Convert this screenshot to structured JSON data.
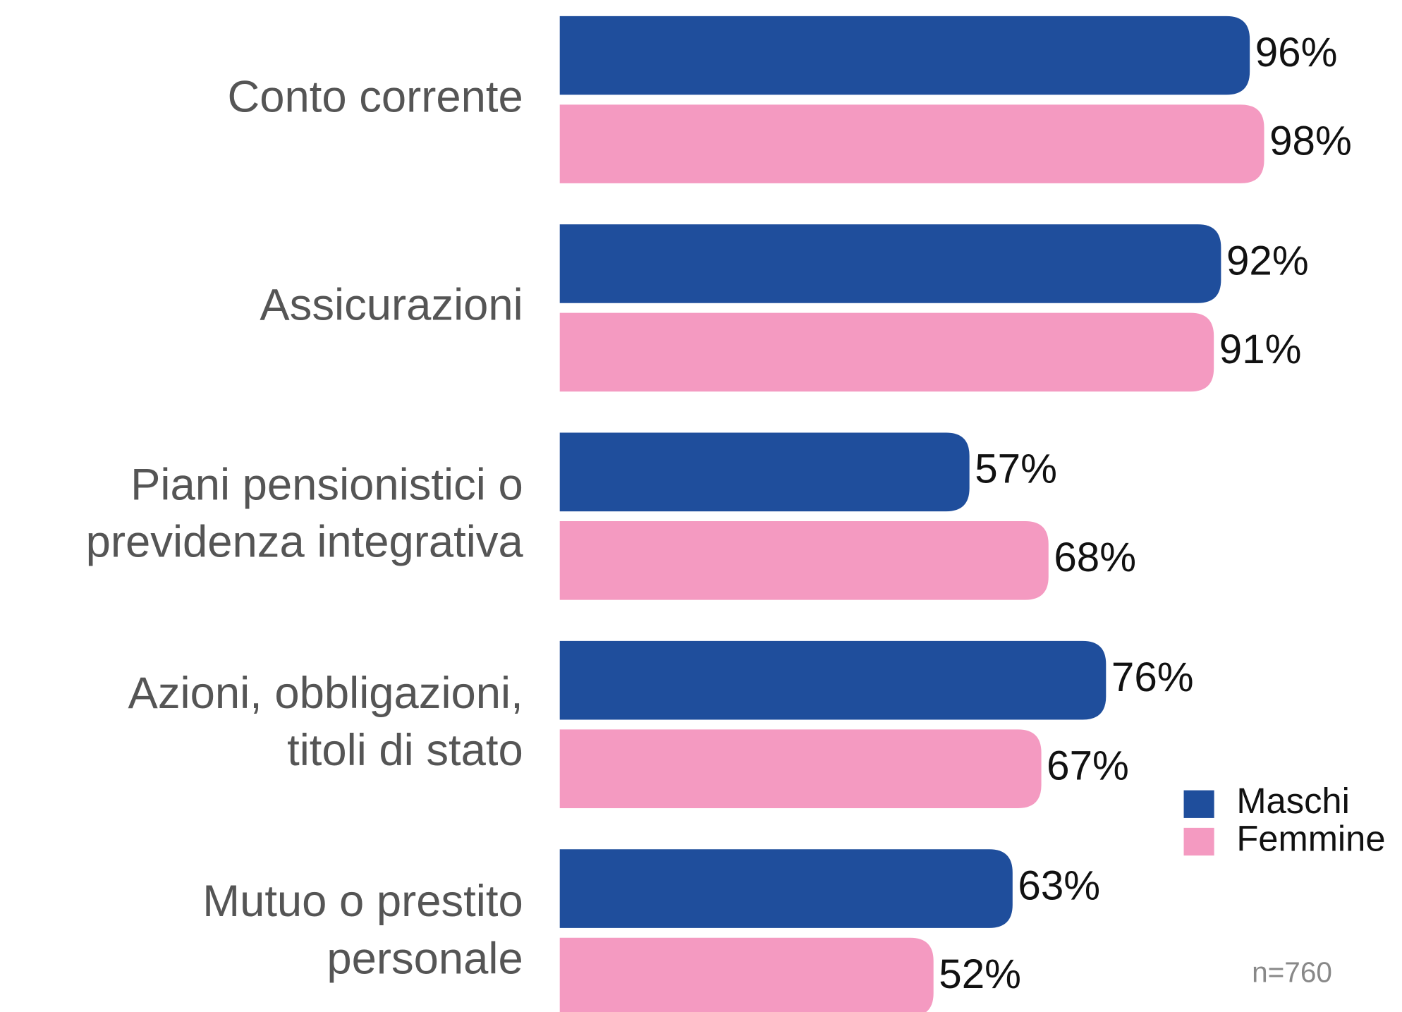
{
  "chart_data": {
    "type": "bar",
    "orientation": "horizontal",
    "categories": [
      "Conto corrente",
      "Assicurazioni",
      "Piani pensionistici o\nprevidenza integrativa",
      "Azioni, obbligazioni,\ntitoli di stato",
      "Mutuo o prestito\npersonale"
    ],
    "series": [
      {
        "name": "Maschi",
        "color": "#1f4e9c",
        "values": [
          96,
          92,
          57,
          76,
          63
        ],
        "value_labels": [
          "96%",
          "92%",
          "57%",
          "76%",
          "63%"
        ]
      },
      {
        "name": "Femmine",
        "color": "#f49ac1",
        "values": [
          98,
          91,
          68,
          67,
          52
        ],
        "value_labels": [
          "98%",
          "91%",
          "68%",
          "67%",
          "52%"
        ]
      }
    ],
    "xlim": [
      0,
      100
    ],
    "legend": "lower right",
    "note": "n=760"
  }
}
